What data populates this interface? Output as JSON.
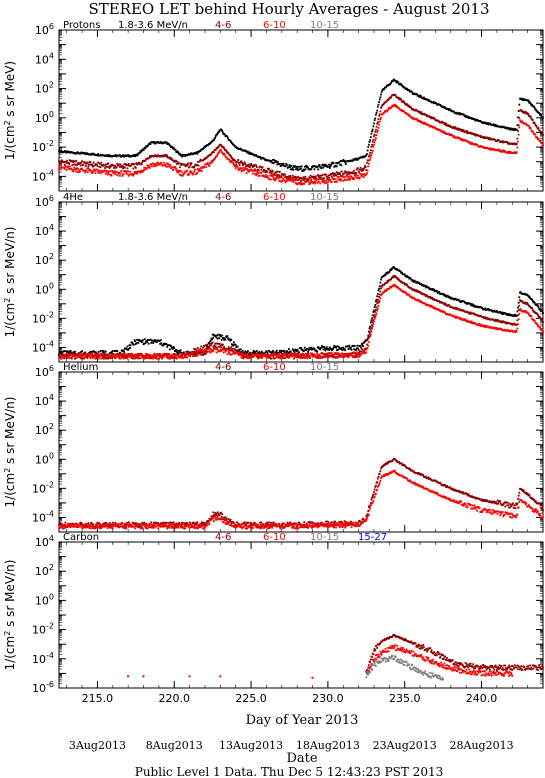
{
  "title": "STEREO LET behind Hourly Averages - August 2013",
  "footer": "Public Level 1 Data. Thu Dec  5 12:43:23 PST 2013",
  "xlabel": "Day of Year 2013",
  "date_axis_label": "Date",
  "colors": {
    "1.8-3.6 MeV/n": "#000000",
    "4-6": "#8b0000",
    "6-10": "#ff0000",
    "10-15": "#808080",
    "15-27": "#0000ff"
  },
  "chart_data": {
    "type": "scatter",
    "scale": "log-y",
    "xlim": [
      212.5,
      244.0
    ],
    "x_ticks": [
      "215.0",
      "220.0",
      "225.0",
      "230.0",
      "235.0",
      "240.0"
    ],
    "date_ticks": [
      "3Aug2013",
      "8Aug2013",
      "13Aug2013",
      "18Aug2013",
      "23Aug2013",
      "28Aug2013"
    ],
    "panels": [
      {
        "name": "Protons",
        "ylabel": "1/(cm² s sr MeV)",
        "ylim_exp": [
          -5,
          6
        ],
        "ytick_exps": [
          -4,
          -2,
          0,
          2,
          4,
          6
        ],
        "legend": [
          "1.8-3.6 MeV/n",
          "4-6",
          "6-10",
          "10-15"
        ],
        "series": [
          {
            "name": "1.8-3.6 MeV/n",
            "x": [
              212.5,
              216.0,
              217.5,
              218.5,
              219.5,
              220.5,
              221.5,
              222.5,
              223.0,
              224.0,
              226.0,
              228.0,
              230.0,
              232.0,
              232.5,
              233.5,
              234.3,
              235.5,
              238.0,
              240.0,
              242.0,
              242.3,
              242.5,
              243.0,
              244.0
            ],
            "y": [
              -2.3,
              -2.6,
              -2.6,
              -1.7,
              -1.7,
              -2.6,
              -2.4,
              -1.6,
              -0.8,
              -2.0,
              -2.9,
              -3.5,
              -3.3,
              -2.8,
              -2.6,
              1.8,
              2.6,
              1.7,
              0.5,
              -0.3,
              -0.8,
              -0.8,
              1.3,
              1.2,
              0.0
            ]
          },
          {
            "name": "4-6",
            "x": [
              212.5,
              216.0,
              217.5,
              218.5,
              219.5,
              220.5,
              221.5,
              222.5,
              223.0,
              224.0,
              226.0,
              228.0,
              230.0,
              232.0,
              232.5,
              233.5,
              234.3,
              235.5,
              238.0,
              240.0,
              242.0,
              242.3,
              242.5,
              243.0,
              244.0
            ],
            "y": [
              -3.0,
              -3.3,
              -3.3,
              -2.6,
              -2.6,
              -3.3,
              -3.2,
              -2.4,
              -1.8,
              -3.0,
              -3.6,
              -4.2,
              -4.0,
              -3.6,
              -3.4,
              0.8,
              1.6,
              0.6,
              -0.6,
              -1.3,
              -1.8,
              -1.8,
              0.5,
              0.3,
              -1.2
            ]
          },
          {
            "name": "6-10",
            "x": [
              212.5,
              216.0,
              217.5,
              218.5,
              219.5,
              220.5,
              221.5,
              222.5,
              223.0,
              224.0,
              226.0,
              228.0,
              230.0,
              232.0,
              232.5,
              233.5,
              234.3,
              235.5,
              238.0,
              240.0,
              242.0,
              242.3,
              242.5,
              243.0,
              244.0
            ],
            "y": [
              -3.4,
              -3.8,
              -3.8,
              -3.2,
              -3.2,
              -3.8,
              -3.7,
              -3.0,
              -2.2,
              -3.4,
              -4.0,
              -4.4,
              -4.3,
              -4.0,
              -3.9,
              0.2,
              0.9,
              0.0,
              -1.2,
              -2.0,
              -2.4,
              -2.4,
              -0.2,
              -0.5,
              -1.9
            ]
          }
        ]
      },
      {
        "name": "4He",
        "ylabel": "1/(cm² s sr MeV/n)",
        "ylim_exp": [
          -5,
          6
        ],
        "ytick_exps": [
          -4,
          -2,
          0,
          2,
          4,
          6
        ],
        "legend": [
          "1.8-3.6 MeV/n",
          "4-6",
          "6-10",
          "10-15"
        ],
        "series": [
          {
            "name": "1.8-3.6 MeV/n",
            "x": [
              212.5,
              214.0,
              216.0,
              216.5,
              217.5,
              218.5,
              219.0,
              220.5,
              222.0,
              222.5,
              223.5,
              224.5,
              226.5,
              229.0,
              232.0,
              232.5,
              233.5,
              234.3,
              235.5,
              238.0,
              240.0,
              242.0,
              242.3,
              242.5,
              243.0,
              244.0
            ],
            "y": [
              -4.4,
              -4.4,
              -4.4,
              -4.4,
              -3.6,
              -3.6,
              -3.6,
              -4.4,
              -4.4,
              -3.2,
              -3.4,
              -4.4,
              -4.4,
              -4.1,
              -4.0,
              -3.6,
              0.8,
              1.5,
              0.6,
              -0.6,
              -1.3,
              -1.8,
              -1.8,
              -0.2,
              -0.4,
              -1.6
            ]
          },
          {
            "name": "4-6",
            "x": [
              212.5,
              216.0,
              216.5,
              218.5,
              220.5,
              222.5,
              223.5,
              224.5,
              228.0,
              232.0,
              232.5,
              233.5,
              234.3,
              235.5,
              238.0,
              240.0,
              242.0,
              242.3,
              242.5,
              243.0,
              244.0
            ],
            "y": [
              -4.6,
              -4.6,
              -4.6,
              -4.6,
              -4.6,
              -3.8,
              -4.0,
              -4.6,
              -4.6,
              -4.5,
              -4.0,
              0.2,
              0.9,
              0.0,
              -1.2,
              -1.9,
              -2.4,
              -2.4,
              -0.8,
              -1.0,
              -2.2
            ]
          },
          {
            "name": "6-10",
            "x": [
              212.5,
              216.0,
              220.5,
              222.5,
              223.5,
              224.5,
              228.0,
              232.0,
              232.5,
              233.5,
              234.3,
              235.5,
              238.0,
              240.0,
              242.0,
              242.3,
              242.5,
              243.0,
              244.0
            ],
            "y": [
              -4.6,
              -4.6,
              -4.6,
              -4.2,
              -4.3,
              -4.6,
              -4.6,
              -4.5,
              -4.2,
              -0.3,
              0.3,
              -0.6,
              -1.8,
              -2.5,
              -2.9,
              -2.9,
              -1.4,
              -1.6,
              -2.9
            ]
          }
        ]
      },
      {
        "name": "Helium",
        "ylabel": "1/(cm² s sr MeV/n)",
        "ylim_exp": [
          -5,
          6
        ],
        "ytick_exps": [
          -4,
          -2,
          0,
          2,
          4,
          6
        ],
        "legend": [
          "4-6",
          "6-10",
          "10-15"
        ],
        "series": [
          {
            "name": "4-6",
            "x": [
              212.5,
              218.0,
              222.0,
              222.5,
              223.0,
              223.5,
              224.0,
              228.0,
              232.0,
              232.5,
              233.5,
              234.3,
              235.5,
              238.0,
              240.0,
              242.0,
              242.3,
              242.5,
              243.0,
              244.0
            ],
            "y": [
              -4.5,
              -4.5,
              -4.5,
              -3.8,
              -3.8,
              -4.2,
              -4.5,
              -4.5,
              -4.4,
              -4.0,
              -0.5,
              0.0,
              -0.8,
              -2.0,
              -2.8,
              -3.2,
              -3.2,
              -2.0,
              -2.4,
              -3.4
            ]
          },
          {
            "name": "6-10",
            "x": [
              212.5,
              218.0,
              222.0,
              222.5,
              223.0,
              223.5,
              224.0,
              228.0,
              232.0,
              232.5,
              233.5,
              234.3,
              235.5,
              238.0,
              240.0,
              242.0,
              242.3,
              242.5,
              243.0,
              244.0
            ],
            "y": [
              -4.6,
              -4.6,
              -4.6,
              -4.1,
              -4.1,
              -4.4,
              -4.6,
              -4.6,
              -4.5,
              -4.2,
              -1.2,
              -0.8,
              -1.6,
              -2.8,
              -3.5,
              -3.9,
              -3.9,
              -2.8,
              -3.1,
              -4.0
            ]
          }
        ]
      },
      {
        "name": "Carbon",
        "ylabel": "1/(cm² s sr MeV/n)",
        "ylim_exp": [
          -6,
          4
        ],
        "ytick_exps": [
          -6,
          -4,
          -2,
          0,
          2,
          4
        ],
        "legend": [
          "4-6",
          "6-10",
          "10-15",
          "15-27"
        ],
        "series": [
          {
            "name": "4-6",
            "x": [
              232.5,
              233.0,
              233.5,
              234.3,
              235.5,
              237.0,
              238.5,
              240.0,
              242.0,
              242.5,
              243.0,
              244.0
            ],
            "y": [
              -5.0,
              -3.4,
              -2.8,
              -2.4,
              -2.9,
              -3.6,
              -4.4,
              -4.6,
              -4.6,
              -4.6,
              -4.6,
              -4.6
            ]
          },
          {
            "name": "6-10",
            "x": [
              217.0,
              218.0,
              221.0,
              223.0,
              229.0,
              232.5,
              233.0,
              233.5,
              234.3,
              235.5,
              237.0,
              238.5,
              240.0,
              242.0
            ],
            "y": [
              -5.2,
              -5.2,
              -5.2,
              -5.2,
              -5.3,
              -5.0,
              -4.0,
              -3.6,
              -3.2,
              -3.6,
              -4.3,
              -4.8,
              -5.0,
              -5.0
            ]
          },
          {
            "name": "10-15",
            "x": [
              232.5,
              233.0,
              233.5,
              234.3,
              235.5,
              236.5,
              237.5
            ],
            "y": [
              -5.2,
              -4.4,
              -4.1,
              -3.9,
              -4.6,
              -5.1,
              -5.3
            ]
          }
        ]
      }
    ]
  }
}
